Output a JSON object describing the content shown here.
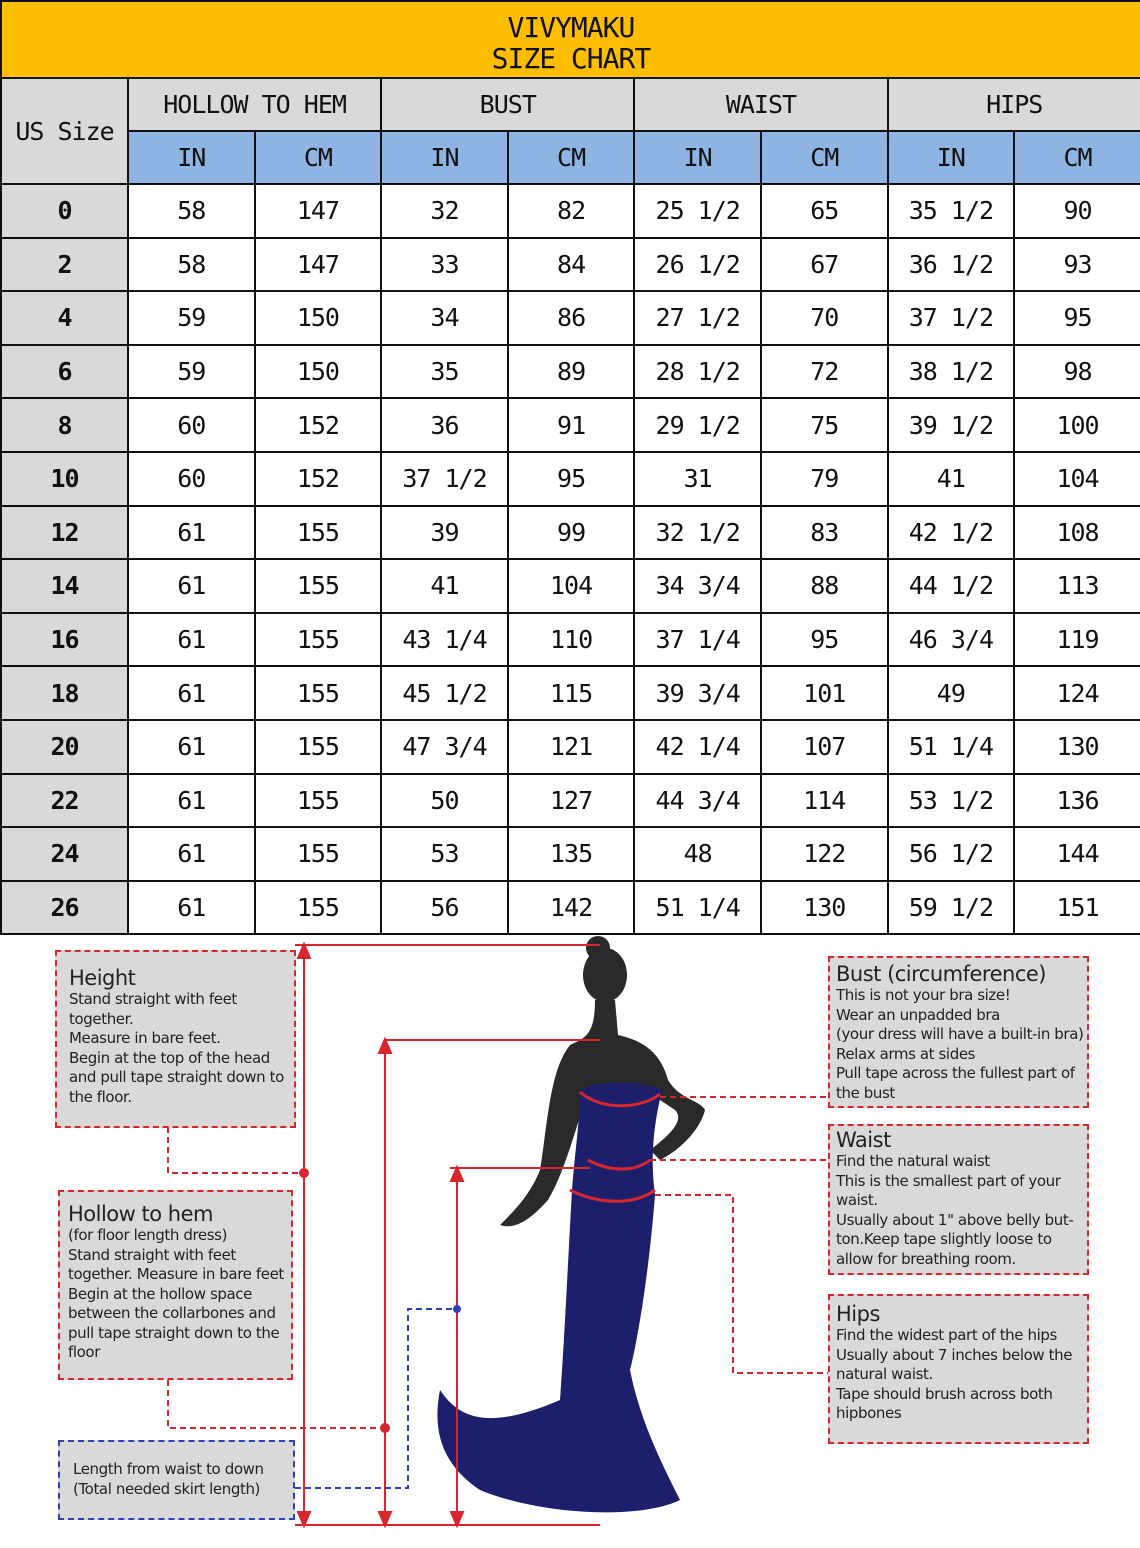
{
  "title": {
    "brand": "VIVYMAKU",
    "subtitle": "SIZE CHART"
  },
  "columns": {
    "size": "US Size",
    "groups": [
      "HOLLOW TO HEM",
      "BUST",
      "WAIST",
      "HIPS"
    ],
    "units": [
      "IN",
      "CM",
      "IN",
      "CM",
      "IN",
      "CM",
      "IN",
      "CM"
    ]
  },
  "rows": [
    [
      "0",
      "58",
      "147",
      "32",
      "82",
      "25 1/2",
      "65",
      "35 1/2",
      "90"
    ],
    [
      "2",
      "58",
      "147",
      "33",
      "84",
      "26 1/2",
      "67",
      "36 1/2",
      "93"
    ],
    [
      "4",
      "59",
      "150",
      "34",
      "86",
      "27 1/2",
      "70",
      "37 1/2",
      "95"
    ],
    [
      "6",
      "59",
      "150",
      "35",
      "89",
      "28 1/2",
      "72",
      "38 1/2",
      "98"
    ],
    [
      "8",
      "60",
      "152",
      "36",
      "91",
      "29 1/2",
      "75",
      "39 1/2",
      "100"
    ],
    [
      "10",
      "60",
      "152",
      "37 1/2",
      "95",
      "31",
      "79",
      "41",
      "104"
    ],
    [
      "12",
      "61",
      "155",
      "39",
      "99",
      "32 1/2",
      "83",
      "42 1/2",
      "108"
    ],
    [
      "14",
      "61",
      "155",
      "41",
      "104",
      "34 3/4",
      "88",
      "44 1/2",
      "113"
    ],
    [
      "16",
      "61",
      "155",
      "43 1/4",
      "110",
      "37 1/4",
      "95",
      "46 3/4",
      "119"
    ],
    [
      "18",
      "61",
      "155",
      "45 1/2",
      "115",
      "39 3/4",
      "101",
      "49",
      "124"
    ],
    [
      "20",
      "61",
      "155",
      "47 3/4",
      "121",
      "42 1/4",
      "107",
      "51 1/4",
      "130"
    ],
    [
      "22",
      "61",
      "155",
      "50",
      "127",
      "44 3/4",
      "114",
      "53 1/2",
      "136"
    ],
    [
      "24",
      "61",
      "155",
      "53",
      "135",
      "48",
      "122",
      "56 1/2",
      "144"
    ],
    [
      "26",
      "61",
      "155",
      "56",
      "142",
      "51 1/4",
      "130",
      "59 1/2",
      "151"
    ]
  ],
  "guide": {
    "height": {
      "title": "Height",
      "text": "Stand straight with feet\ntogether.\nMeasure in bare feet.\nBegin at the top of the head\nand pull tape straight down to\nthe floor."
    },
    "hollow": {
      "title": "Hollow to hem",
      "text": "(for floor length dress)\nStand straight with feet\ntogether. Measure in bare feet\nBegin at the hollow space\nbetween the collarbones and\npull tape straight down to the\nfloor"
    },
    "skirt": {
      "text": "Length from waist to down\n(Total needed skirt length)"
    },
    "bust": {
      "title": "Bust (circumference)",
      "text": "This is not your bra size!\nWear an unpadded bra\n(your dress will have a built-in bra)\nRelax arms at sides\nPull tape across the fullest part of\nthe bust"
    },
    "waist": {
      "title": "Waist",
      "text": "Find the natural waist\nThis is the smallest part of your\nwaist.\nUsually about 1\" above belly but-\nton.Keep tape slightly loose to\nallow for breathing room."
    },
    "hips": {
      "title": "Hips",
      "text": "Find the widest part of the hips\nUsually about 7 inches below the\nnatural waist.\nTape should brush across both\nhipbones"
    }
  },
  "colors": {
    "title_bg": "#fdbd00",
    "header_bg": "#d9d9d9",
    "unit_bg": "#8db4e2",
    "guide_line": "#d9262e",
    "skirt_line": "#2b3fbf",
    "dress": "#1c1f6b"
  }
}
